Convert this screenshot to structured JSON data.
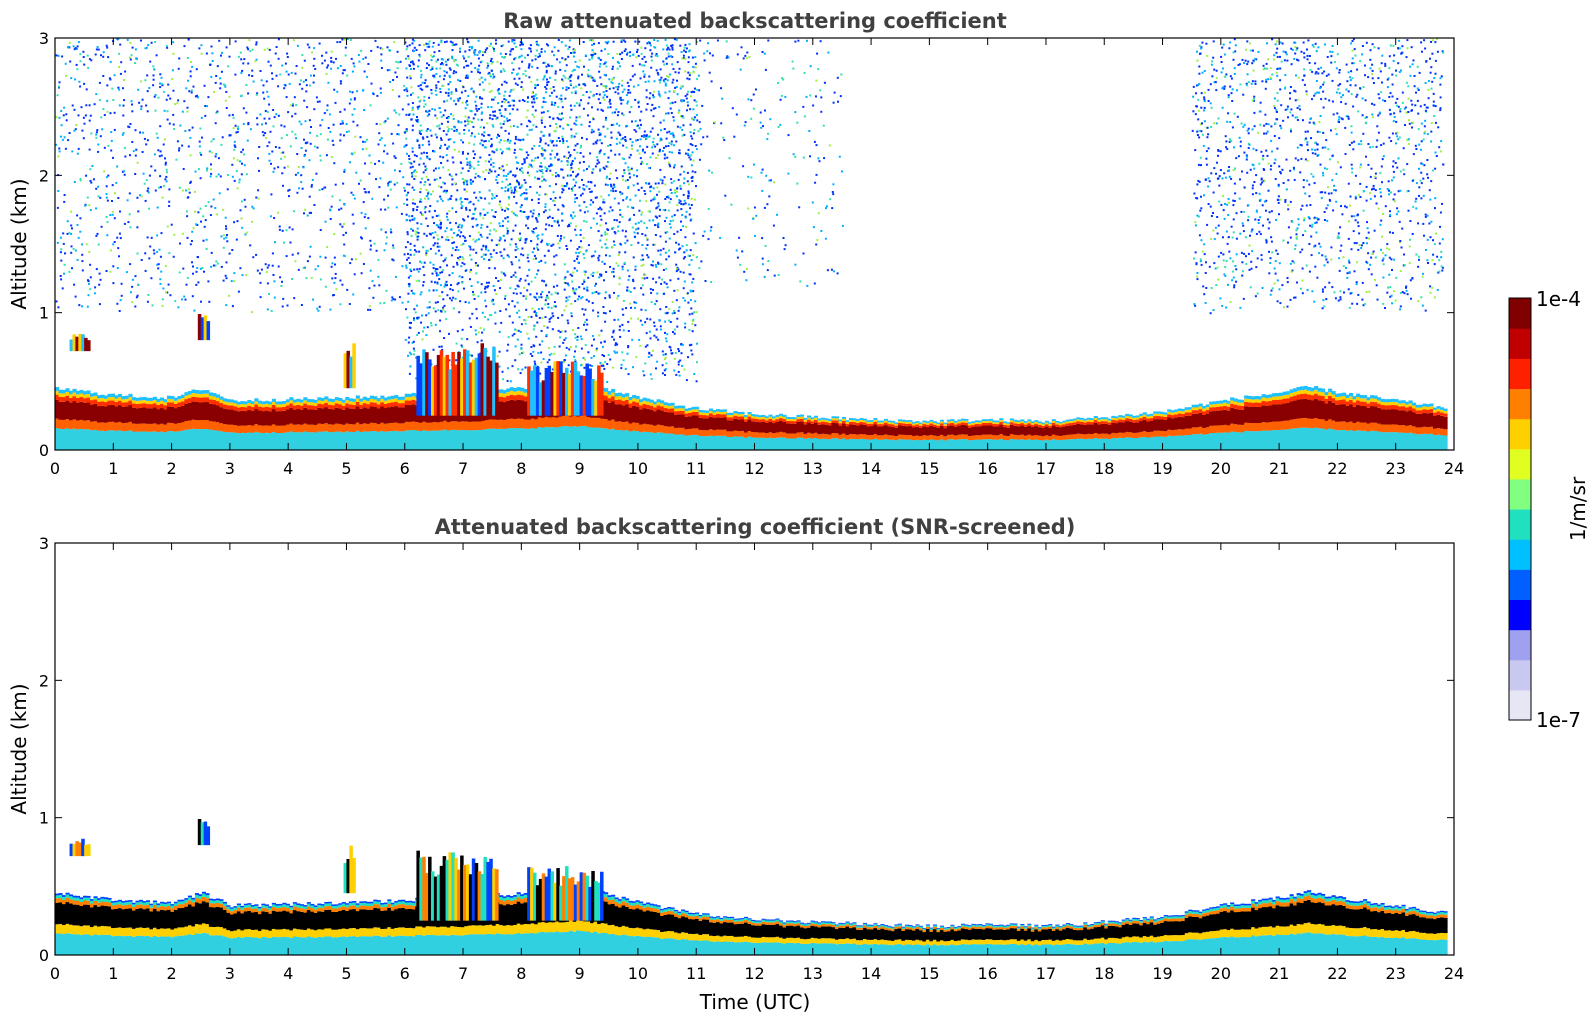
{
  "chart_data": [
    {
      "type": "heatmap",
      "title": "Raw attenuated backscattering coefficient",
      "xlabel": "",
      "ylabel": "Altitude (km)",
      "xlim": [
        0,
        24
      ],
      "ylim": [
        0,
        3
      ],
      "xticks": [
        "0",
        "1",
        "2",
        "3",
        "4",
        "5",
        "6",
        "7",
        "8",
        "9",
        "10",
        "11",
        "12",
        "13",
        "14",
        "15",
        "16",
        "17",
        "18",
        "19",
        "20",
        "21",
        "22",
        "23",
        "24"
      ],
      "yticks": [
        "0",
        "1",
        "2",
        "3"
      ],
      "boundary_layer_top_km": [
        {
          "x": 0,
          "y": 0.45
        },
        {
          "x": 1,
          "y": 0.4
        },
        {
          "x": 2,
          "y": 0.38
        },
        {
          "x": 2.5,
          "y": 0.45
        },
        {
          "x": 3,
          "y": 0.36
        },
        {
          "x": 4,
          "y": 0.37
        },
        {
          "x": 5,
          "y": 0.38
        },
        {
          "x": 6,
          "y": 0.4
        },
        {
          "x": 7,
          "y": 0.42
        },
        {
          "x": 8,
          "y": 0.45
        },
        {
          "x": 9,
          "y": 0.5
        },
        {
          "x": 10,
          "y": 0.38
        },
        {
          "x": 11,
          "y": 0.3
        },
        {
          "x": 12,
          "y": 0.26
        },
        {
          "x": 13,
          "y": 0.24
        },
        {
          "x": 14,
          "y": 0.22
        },
        {
          "x": 15,
          "y": 0.21
        },
        {
          "x": 16,
          "y": 0.22
        },
        {
          "x": 17,
          "y": 0.21
        },
        {
          "x": 18,
          "y": 0.24
        },
        {
          "x": 19,
          "y": 0.28
        },
        {
          "x": 20,
          "y": 0.36
        },
        {
          "x": 21,
          "y": 0.42
        },
        {
          "x": 21.5,
          "y": 0.46
        },
        {
          "x": 22,
          "y": 0.42
        },
        {
          "x": 23,
          "y": 0.36
        },
        {
          "x": 23.8,
          "y": 0.31
        }
      ],
      "elevated_features": [
        {
          "x_start": 0.25,
          "x_end": 0.6,
          "y_bottom": 0.72,
          "y_top": 0.85
        },
        {
          "x_start": 2.45,
          "x_end": 2.65,
          "y_bottom": 0.8,
          "y_top": 1.0
        },
        {
          "x_start": 4.95,
          "x_end": 5.15,
          "y_bottom": 0.45,
          "y_top": 0.8
        },
        {
          "x_start": 6.2,
          "x_end": 7.6,
          "y_bottom": 0.25,
          "y_top": 0.78
        },
        {
          "x_start": 8.1,
          "x_end": 9.4,
          "y_bottom": 0.25,
          "y_top": 0.65
        }
      ],
      "noise_regions": [
        {
          "x_start": 0,
          "x_end": 6,
          "y_bottom": 1.0,
          "y_top": 3.0,
          "density": 0.12
        },
        {
          "x_start": 6,
          "x_end": 11,
          "y_bottom": 0.5,
          "y_top": 3.0,
          "density": 0.3
        },
        {
          "x_start": 11,
          "x_end": 13.5,
          "y_bottom": 1.2,
          "y_top": 3.0,
          "density": 0.05
        },
        {
          "x_start": 19.5,
          "x_end": 23.8,
          "y_bottom": 1.0,
          "y_top": 3.0,
          "density": 0.18
        }
      ]
    },
    {
      "type": "heatmap",
      "title": "Attenuated backscattering coefficient (SNR-screened)",
      "xlabel": "Time (UTC)",
      "ylabel": "Altitude (km)",
      "xlim": [
        0,
        24
      ],
      "ylim": [
        0,
        3
      ],
      "xticks": [
        "0",
        "1",
        "2",
        "3",
        "4",
        "5",
        "6",
        "7",
        "8",
        "9",
        "10",
        "11",
        "12",
        "13",
        "14",
        "15",
        "16",
        "17",
        "18",
        "19",
        "20",
        "21",
        "22",
        "23",
        "24"
      ],
      "yticks": [
        "0",
        "1",
        "2",
        "3"
      ],
      "screened_color": "#000000"
    }
  ],
  "colorbar": {
    "label": "1/m/sr",
    "max_label": "1e-4",
    "min_label": "1e-7",
    "scale": "log",
    "colormap": [
      "#e6e6f5",
      "#c8c8f0",
      "#a0a0f0",
      "#0000ff",
      "#0060ff",
      "#00c0ff",
      "#20e0c0",
      "#80ff80",
      "#e0ff20",
      "#ffd000",
      "#ff8000",
      "#ff2000",
      "#c00000",
      "#800000"
    ]
  }
}
